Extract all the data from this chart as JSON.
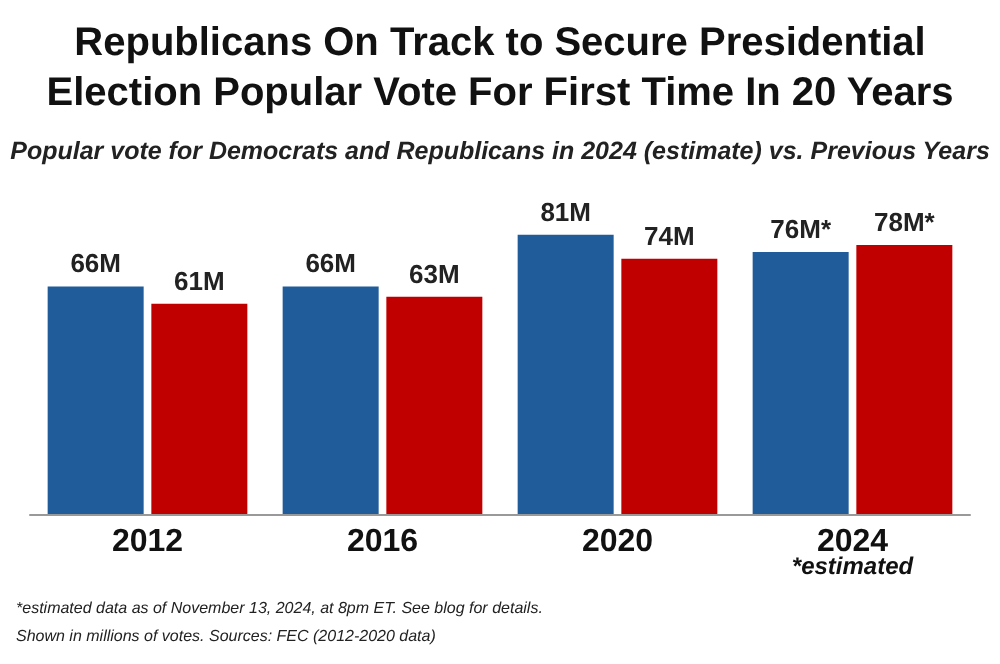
{
  "chart_data": {
    "type": "bar",
    "title": "Republicans On Track to Secure Presidential\nElection Popular Vote For First Time In 20 Years",
    "subtitle": "Popular vote for Democrats and Republicans in 2024 (estimate) vs. Previous Years",
    "categories": [
      "2012",
      "2016",
      "2020",
      "2024"
    ],
    "series": [
      {
        "color": "#1f5c99",
        "values": [
          66,
          66,
          81,
          76
        ],
        "value_labels": [
          "66M",
          "66M",
          "81M",
          "76M*"
        ]
      },
      {
        "color": "#c00000",
        "values": [
          61,
          63,
          74,
          78
        ],
        "value_labels": [
          "61M",
          "63M",
          "74M",
          "78M*"
        ]
      }
    ],
    "annotations": [
      "*estimated",
      "*estimated data as of November 13, 2024, at 8pm ET. See blog for details.",
      "Shown in millions of votes. Sources: FEC (2012-2020 data)"
    ]
  }
}
